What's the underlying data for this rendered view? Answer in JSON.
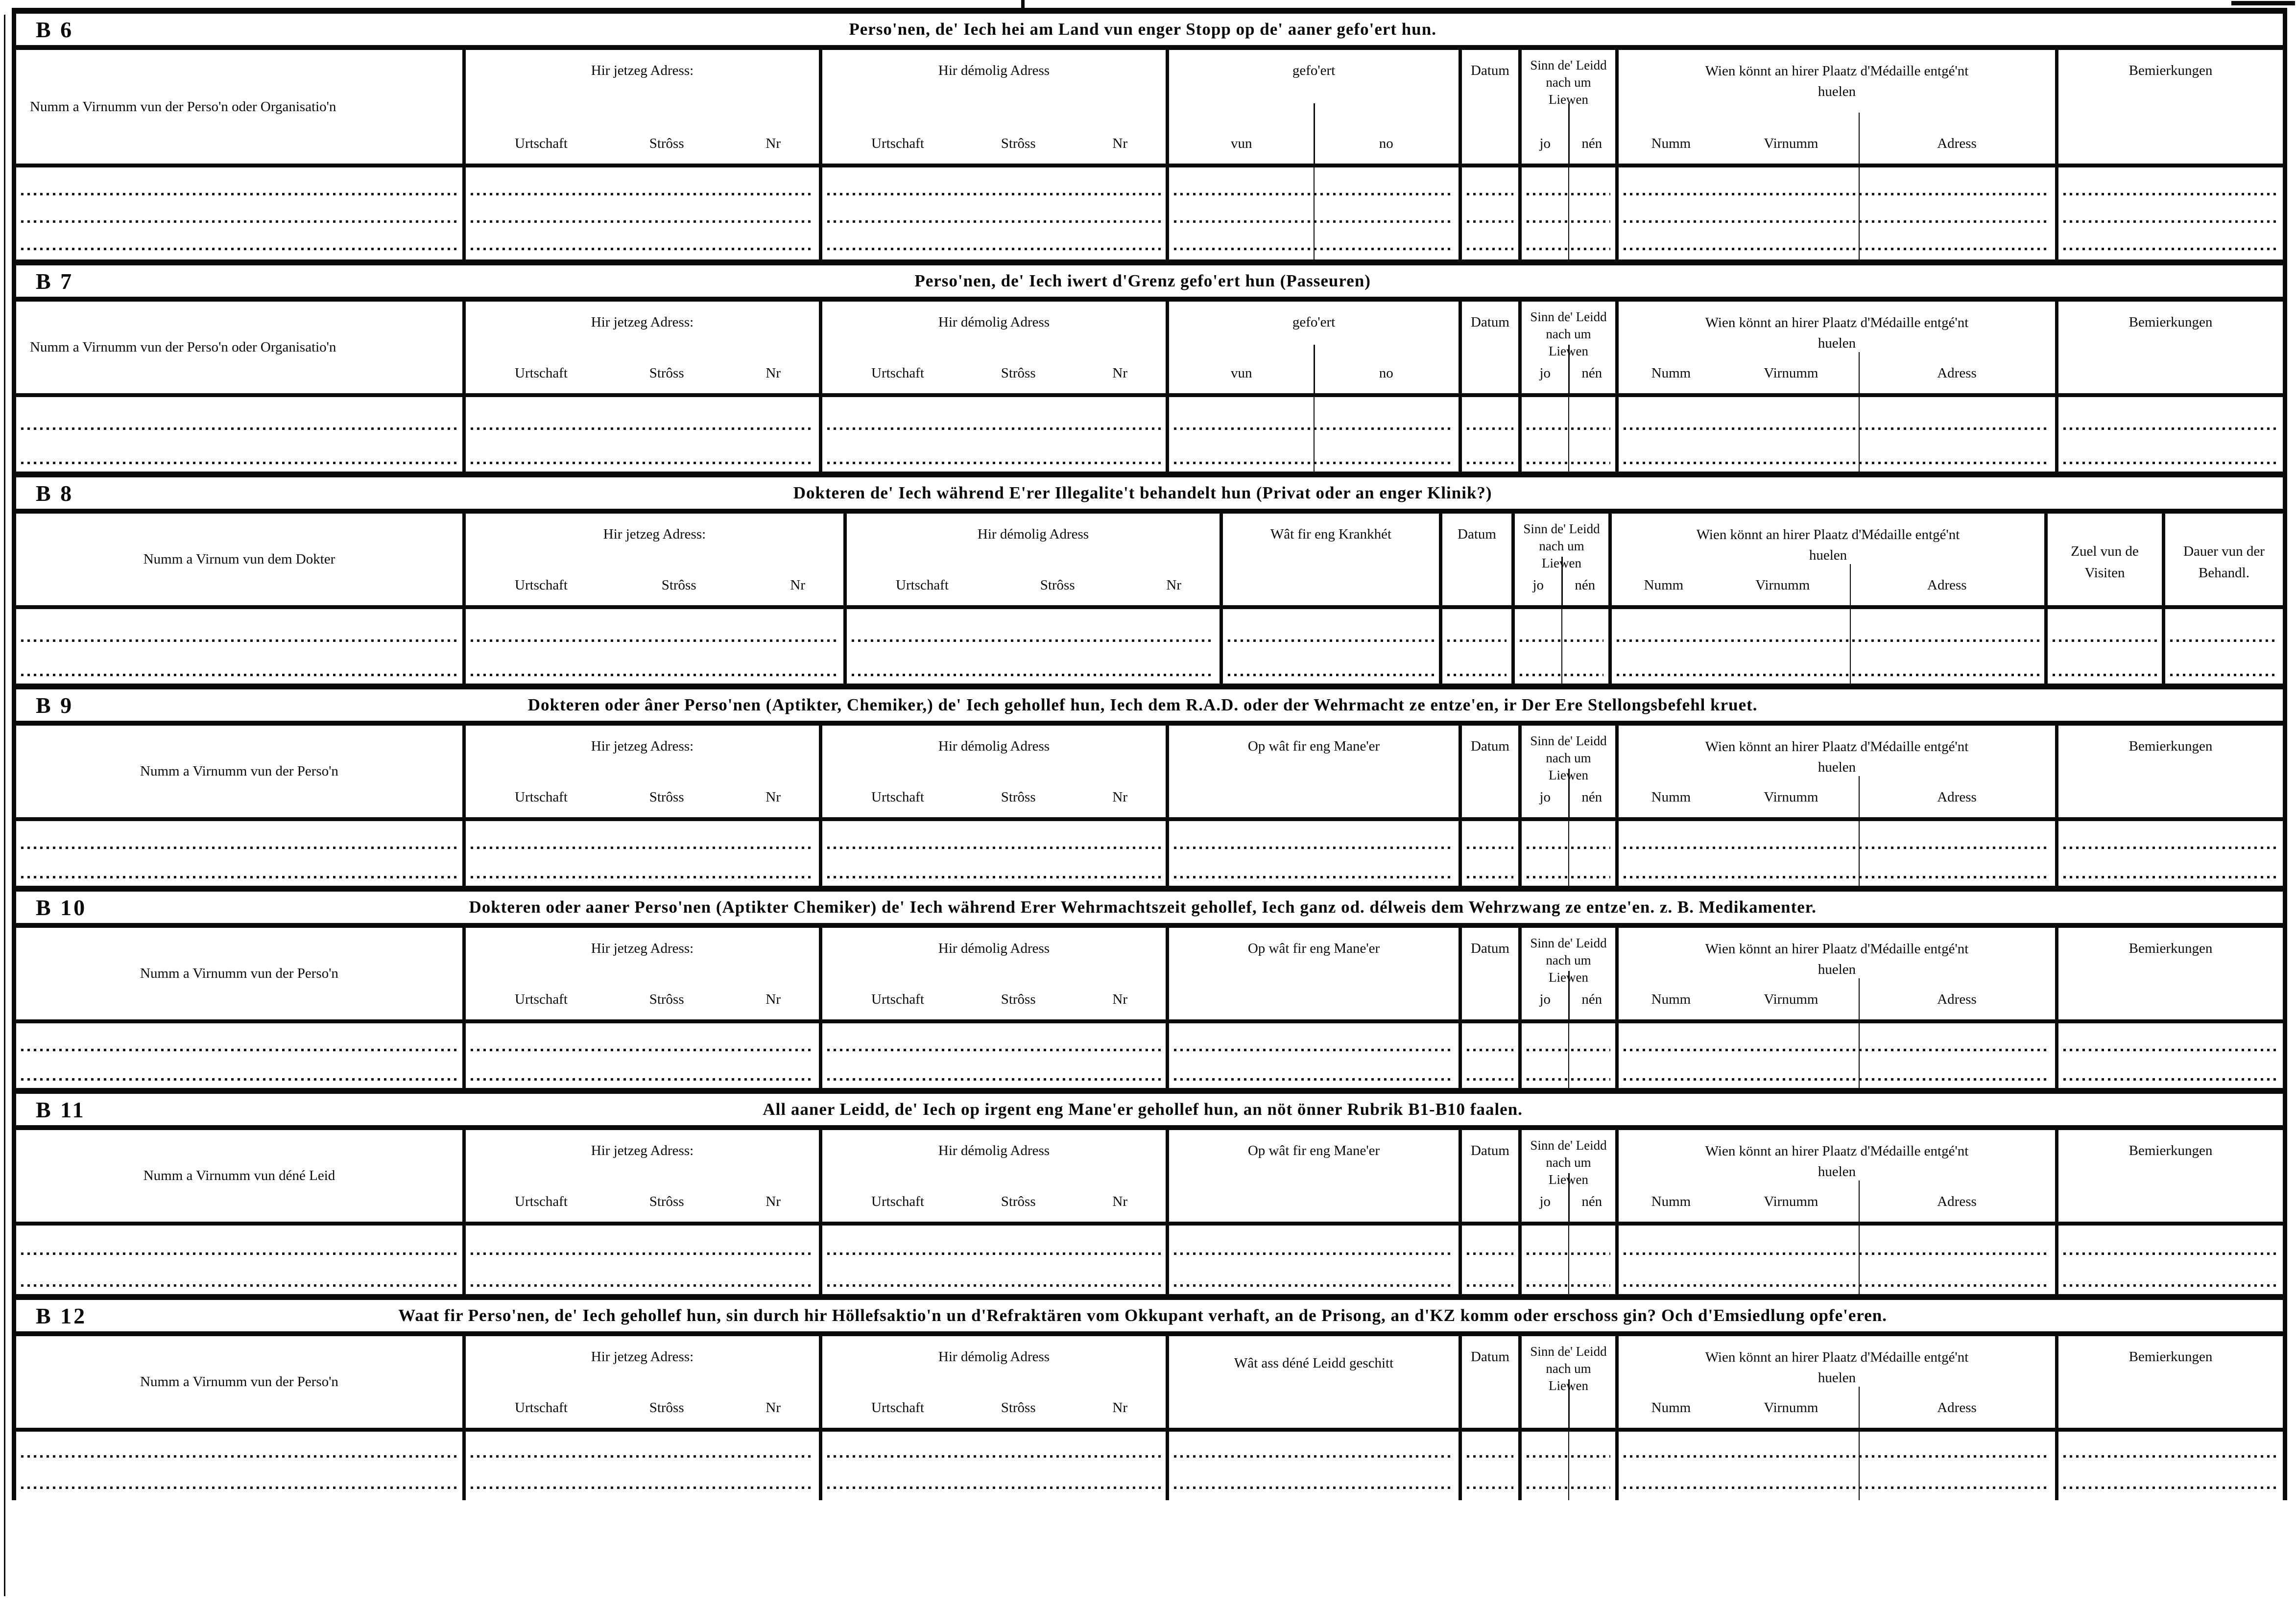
{
  "labels": {
    "now_address": "Hir jetzeg Adress:",
    "former_address": "Hir démolig Adress",
    "urtschaft": "Urtschaft",
    "stross": "Strôss",
    "nr": "Nr",
    "vun": "vun",
    "no": "no",
    "datum": "Datum",
    "alive": "Sinn de' Leidd nach um Liewen",
    "jo": "jo",
    "nen": "nén",
    "medal": "Wien könnt an hirer Plaatz d'Médaille entgé'nt huelen",
    "numm": "Numm",
    "virnumm": "Virnumm",
    "adress": "Adress",
    "bemierkungen": "Bemierkungen"
  },
  "sections": [
    {
      "code": "B 6",
      "title": "Perso'nen, de' Iech hei am Land vun enger Stopp op de' aaner gefo'ert hun.",
      "name_col": "Numm a Virnumm vun der Perso'n oder Organisatio'n",
      "what_col": "gefo'ert"
    },
    {
      "code": "B 7",
      "title": "Perso'nen, de' Iech iwert d'Grenz gefo'ert hun (Passeuren)",
      "name_col": "Numm a Virnumm vun der Perso'n oder Organisatio'n",
      "what_col": "gefo'ert"
    },
    {
      "code": "B 8",
      "title": "Dokteren de' Iech während E'rer Illegalite't behandelt hun (Privat oder an enger Klinik?)",
      "name_col": "Numm a Virnum vun dem Dokter",
      "what_col": "Wât fir eng Krankhét",
      "visits_col": "Zuel vun de Visiten",
      "duration_col": "Dauer vun der Behandl."
    },
    {
      "code": "B 9",
      "title": "Dokteren oder âner Perso'nen (Aptikter, Chemiker,) de' Iech gehollef hun, Iech dem R.A.D. oder der Wehrmacht ze entze'en, ir Der Ere Stellongsbefehl kruet.",
      "name_col": "Numm a Virnumm vun der Perso'n",
      "what_col": "Op wât fir eng Mane'er"
    },
    {
      "code": "B 10",
      "title": "Dokteren oder aaner Perso'nen (Aptikter Chemiker) de' Iech während Erer Wehrmachtszeit gehollef, Iech ganz od. délweis dem Wehrzwang ze entze'en. z. B. Medikamenter.",
      "name_col": "Numm a Virnumm vun der Perso'n",
      "what_col": "Op wât fir eng Mane'er"
    },
    {
      "code": "B 11",
      "title": "All aaner Leidd, de' Iech op irgent eng Mane'er gehollef hun, an nöt önner Rubrik B1-B10 faalen.",
      "name_col": "Numm a Virnumm vun déné Leid",
      "what_col": "Op wât fir eng Mane'er"
    },
    {
      "code": "B 12",
      "title": "Waat fir Perso'nen, de' Iech gehollef hun, sin durch hir Höllefsaktio'n un d'Refraktären vom Okkupant verhaft, an de Prisong, an d'KZ komm oder erschoss gin? Och d'Emsiedlung opfe'eren.",
      "name_col": "Numm a Virnumm vun der Perso'n",
      "what_col": "Wât ass déné Leidd geschitt"
    }
  ]
}
